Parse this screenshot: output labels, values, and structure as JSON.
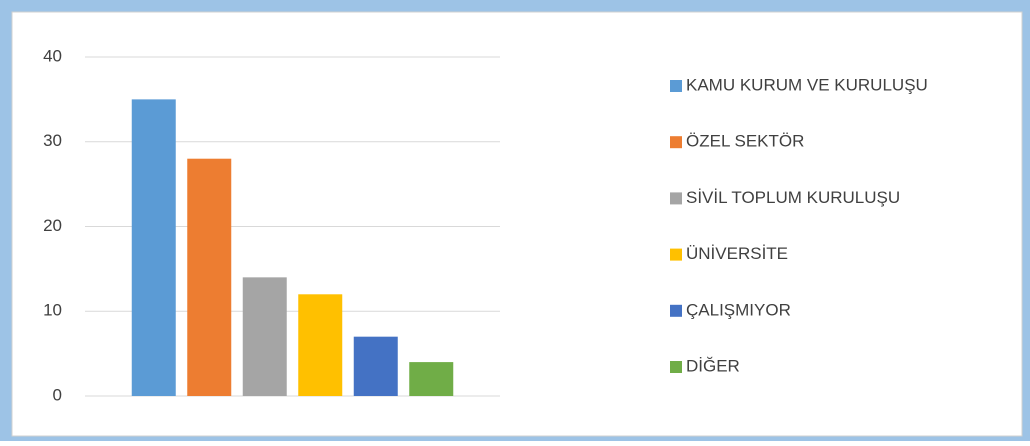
{
  "chart_data": {
    "type": "bar",
    "categories": [
      null
    ],
    "series": [
      {
        "name": "KAMU KURUM VE KURULUŞU",
        "color": "#5b9bd5",
        "values": [
          35
        ]
      },
      {
        "name": "ÖZEL SEKTÖR",
        "color": "#ed7d31",
        "values": [
          28
        ]
      },
      {
        "name": "SİVİL TOPLUM KURULUŞU",
        "color": "#a5a5a5",
        "values": [
          14
        ]
      },
      {
        "name": "ÜNİVERSİTE",
        "color": "#ffc000",
        "values": [
          12
        ]
      },
      {
        "name": "ÇALIŞMIYOR",
        "color": "#4472c4",
        "values": [
          7
        ]
      },
      {
        "name": "DİĞER",
        "color": "#70ad47",
        "values": [
          4
        ]
      }
    ],
    "ylim": [
      0,
      40
    ],
    "yticks": [
      0,
      10,
      20,
      30,
      40
    ],
    "grid": true,
    "legend": "right"
  }
}
